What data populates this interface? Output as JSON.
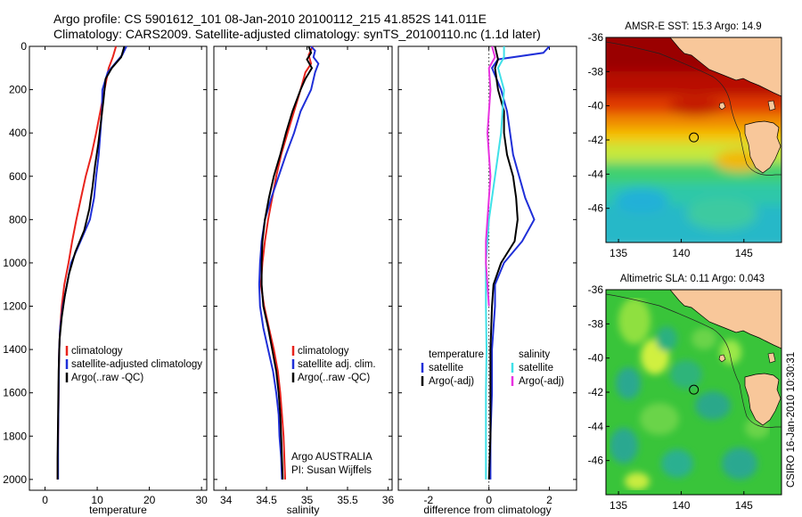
{
  "header": {
    "line1": "Argo profile: CS 5901612_101 08-Jan-2010 20100112_215 41.852S 141.011E",
    "line2": "Climatology: CARS2009. Satellite-adjusted climatology: synTS_20100110.nc (1.1d later)"
  },
  "credit": "Argo AUSTRALIA",
  "pi": "PI: Susan Wijffels",
  "stamp": "CSIRO 16-Jan-2010 10:30:31",
  "colors": {
    "climatology": "#e8231c",
    "satellite": "#1f2fd8",
    "argo": "#000000",
    "sat_diff": "#3fe0e8",
    "argo_diff": "#e832e0",
    "land": "#f8c79a"
  },
  "chart_data": [
    {
      "type": "line",
      "xlabel": "temperature",
      "ylabel": "",
      "xlim": [
        -3,
        31
      ],
      "ylim": [
        2050,
        0
      ],
      "xticks": [
        0,
        10,
        20,
        30
      ],
      "yticks": [
        0,
        200,
        400,
        600,
        800,
        1000,
        1200,
        1400,
        1600,
        1800,
        2000
      ],
      "legend": {
        "position": "lower-right",
        "entries": [
          "climatology",
          "satellite-adjusted climatology",
          "Argo(..raw -QC)"
        ]
      },
      "series": [
        {
          "name": "climatology",
          "color": "#e8231c",
          "points": [
            [
              13.6,
              0
            ],
            [
              13.0,
              50
            ],
            [
              12.2,
              100
            ],
            [
              11.4,
              200
            ],
            [
              10.6,
              300
            ],
            [
              9.8,
              400
            ],
            [
              8.9,
              500
            ],
            [
              7.8,
              600
            ],
            [
              6.9,
              700
            ],
            [
              6.0,
              800
            ],
            [
              5.2,
              900
            ],
            [
              4.5,
              1000
            ],
            [
              3.7,
              1100
            ],
            [
              3.2,
              1200
            ],
            [
              2.9,
              1300
            ],
            [
              2.7,
              1400
            ],
            [
              2.6,
              1600
            ],
            [
              2.5,
              1800
            ],
            [
              2.4,
              2000
            ]
          ]
        },
        {
          "name": "satellite-adjusted climatology",
          "color": "#1f2fd8",
          "points": [
            [
              15.6,
              0
            ],
            [
              14.8,
              40
            ],
            [
              13.4,
              80
            ],
            [
              12.0,
              120
            ],
            [
              11.0,
              200
            ],
            [
              10.9,
              300
            ],
            [
              10.6,
              400
            ],
            [
              10.3,
              500
            ],
            [
              9.8,
              600
            ],
            [
              9.4,
              700
            ],
            [
              8.6,
              800
            ],
            [
              6.8,
              900
            ],
            [
              5.0,
              1000
            ],
            [
              4.2,
              1100
            ],
            [
              3.4,
              1200
            ],
            [
              2.9,
              1300
            ],
            [
              2.7,
              1400
            ],
            [
              2.6,
              1600
            ],
            [
              2.5,
              1800
            ],
            [
              2.5,
              2000
            ]
          ]
        },
        {
          "name": "Argo(..raw -QC)",
          "color": "#000000",
          "points": [
            [
              15.2,
              0
            ],
            [
              14.6,
              50
            ],
            [
              12.8,
              100
            ],
            [
              11.6,
              150
            ],
            [
              11.2,
              250
            ],
            [
              10.7,
              350
            ],
            [
              10.2,
              450
            ],
            [
              9.6,
              550
            ],
            [
              9.1,
              650
            ],
            [
              8.5,
              750
            ],
            [
              7.5,
              850
            ],
            [
              5.8,
              950
            ],
            [
              4.6,
              1050
            ],
            [
              3.8,
              1150
            ],
            [
              3.2,
              1250
            ],
            [
              2.8,
              1350
            ],
            [
              2.6,
              1500
            ],
            [
              2.5,
              1700
            ],
            [
              2.4,
              1900
            ],
            [
              2.4,
              2000
            ]
          ]
        }
      ]
    },
    {
      "type": "line",
      "xlabel": "salinity",
      "ylabel": "",
      "xlim": [
        33.85,
        36.05
      ],
      "ylim": [
        2050,
        0
      ],
      "xticks": [
        34,
        34.5,
        35,
        35.5,
        36
      ],
      "legend": {
        "position": "lower-right",
        "entries": [
          "climatology",
          "satellite adj. clim.",
          "Argo(..raw -QC)"
        ]
      },
      "series": [
        {
          "name": "climatology",
          "color": "#e8231c",
          "points": [
            [
              35.07,
              0
            ],
            [
              35.02,
              40
            ],
            [
              35.05,
              80
            ],
            [
              34.98,
              120
            ],
            [
              34.92,
              200
            ],
            [
              34.84,
              300
            ],
            [
              34.76,
              400
            ],
            [
              34.68,
              500
            ],
            [
              34.62,
              600
            ],
            [
              34.57,
              700
            ],
            [
              34.52,
              800
            ],
            [
              34.48,
              900
            ],
            [
              34.45,
              1000
            ],
            [
              34.43,
              1100
            ],
            [
              34.47,
              1200
            ],
            [
              34.53,
              1300
            ],
            [
              34.59,
              1400
            ],
            [
              34.64,
              1500
            ],
            [
              34.67,
              1600
            ],
            [
              34.69,
              1700
            ],
            [
              34.71,
              1800
            ],
            [
              34.72,
              1900
            ],
            [
              34.73,
              2000
            ]
          ]
        },
        {
          "name": "satellite adj. clim.",
          "color": "#1f2fd8",
          "points": [
            [
              35.05,
              0
            ],
            [
              35.1,
              20
            ],
            [
              35.08,
              50
            ],
            [
              35.14,
              80
            ],
            [
              35.1,
              120
            ],
            [
              35.05,
              200
            ],
            [
              34.92,
              300
            ],
            [
              34.84,
              400
            ],
            [
              34.74,
              500
            ],
            [
              34.65,
              600
            ],
            [
              34.56,
              700
            ],
            [
              34.48,
              800
            ],
            [
              34.44,
              900
            ],
            [
              34.42,
              1000
            ],
            [
              34.41,
              1100
            ],
            [
              34.42,
              1200
            ],
            [
              34.46,
              1300
            ],
            [
              34.52,
              1400
            ],
            [
              34.58,
              1500
            ],
            [
              34.62,
              1600
            ],
            [
              34.65,
              1700
            ],
            [
              34.66,
              1800
            ],
            [
              34.68,
              1900
            ],
            [
              34.69,
              2000
            ]
          ]
        },
        {
          "name": "Argo(..raw -QC)",
          "color": "#000000",
          "points": [
            [
              35.02,
              0
            ],
            [
              35.05,
              30
            ],
            [
              35.0,
              60
            ],
            [
              35.06,
              100
            ],
            [
              34.98,
              150
            ],
            [
              34.92,
              200
            ],
            [
              34.82,
              300
            ],
            [
              34.74,
              400
            ],
            [
              34.67,
              500
            ],
            [
              34.59,
              600
            ],
            [
              34.53,
              700
            ],
            [
              34.48,
              800
            ],
            [
              34.45,
              900
            ],
            [
              34.44,
              1000
            ],
            [
              34.44,
              1100
            ],
            [
              34.46,
              1200
            ],
            [
              34.52,
              1300
            ],
            [
              34.57,
              1400
            ],
            [
              34.62,
              1500
            ],
            [
              34.65,
              1600
            ],
            [
              34.67,
              1700
            ],
            [
              34.68,
              1800
            ],
            [
              34.69,
              1900
            ],
            [
              34.7,
              2000
            ]
          ]
        }
      ]
    },
    {
      "type": "line",
      "xlabel": "difference from climatology",
      "ylabel": "",
      "xlim": [
        -3,
        2.9
      ],
      "ylim": [
        2050,
        0
      ],
      "xticks": [
        -2,
        0,
        2
      ],
      "legend": {
        "position": "lower-right",
        "groups": [
          {
            "heading": "temperature",
            "entries": [
              "satellite",
              "Argo(-adj)"
            ]
          },
          {
            "heading": "salinity",
            "entries": [
              "satellite",
              "Argo(-adj)"
            ]
          }
        ]
      },
      "series": [
        {
          "name": "satellite",
          "group": "temperature",
          "color": "#1f2fd8",
          "points": [
            [
              2.0,
              0
            ],
            [
              1.8,
              30
            ],
            [
              0.3,
              60
            ],
            [
              0.1,
              100
            ],
            [
              0.4,
              200
            ],
            [
              0.6,
              300
            ],
            [
              0.7,
              400
            ],
            [
              0.8,
              500
            ],
            [
              1.0,
              600
            ],
            [
              1.2,
              700
            ],
            [
              1.5,
              800
            ],
            [
              1.1,
              900
            ],
            [
              0.5,
              1000
            ],
            [
              0.2,
              1100
            ],
            [
              0.2,
              1200
            ],
            [
              0.1,
              1400
            ],
            [
              0.1,
              1600
            ],
            [
              0.05,
              1800
            ],
            [
              0.05,
              2000
            ]
          ]
        },
        {
          "name": "Argo(-adj)",
          "group": "temperature",
          "color": "#000000",
          "points": [
            [
              0.2,
              0
            ],
            [
              0.3,
              60
            ],
            [
              0.2,
              100
            ],
            [
              0.3,
              200
            ],
            [
              0.5,
              300
            ],
            [
              0.5,
              400
            ],
            [
              0.6,
              500
            ],
            [
              0.8,
              600
            ],
            [
              0.9,
              700
            ],
            [
              0.95,
              800
            ],
            [
              0.85,
              900
            ],
            [
              0.4,
              1000
            ],
            [
              0.15,
              1100
            ],
            [
              0.1,
              1200
            ],
            [
              0.05,
              1400
            ],
            [
              0.05,
              1600
            ],
            [
              0.05,
              1800
            ],
            [
              0.0,
              2000
            ]
          ]
        },
        {
          "name": "satellite",
          "group": "salinity",
          "color": "#3fe0e8",
          "points": [
            [
              0.5,
              0
            ],
            [
              0.5,
              50
            ],
            [
              0.3,
              100
            ],
            [
              0.5,
              200
            ],
            [
              0.45,
              300
            ],
            [
              0.4,
              400
            ],
            [
              0.3,
              500
            ],
            [
              0.2,
              600
            ],
            [
              0.1,
              700
            ],
            [
              0.0,
              800
            ],
            [
              -0.05,
              900
            ],
            [
              -0.1,
              1000
            ],
            [
              -0.1,
              1100
            ],
            [
              -0.1,
              1200
            ],
            [
              -0.08,
              1400
            ],
            [
              -0.1,
              1600
            ],
            [
              -0.1,
              1800
            ],
            [
              -0.1,
              2000
            ]
          ]
        },
        {
          "name": "Argo(-adj)",
          "group": "salinity",
          "color": "#e832e0",
          "points": [
            [
              0.1,
              0
            ],
            [
              0.2,
              50
            ],
            [
              0.0,
              100
            ],
            [
              0.05,
              200
            ],
            [
              0.0,
              300
            ],
            [
              -0.05,
              400
            ],
            [
              0.0,
              500
            ],
            [
              0.05,
              600
            ],
            [
              0.0,
              700
            ],
            [
              -0.05,
              800
            ],
            [
              -0.1,
              900
            ],
            [
              -0.1,
              1000
            ],
            [
              -0.05,
              1100
            ],
            [
              0.0,
              1200
            ]
          ]
        }
      ]
    },
    {
      "type": "heatmap",
      "title": "AMSR-E SST: 15.3 Argo: 14.9",
      "xlim": [
        134,
        148
      ],
      "ylim": [
        -48,
        -36
      ],
      "xticks": [
        135,
        140,
        145
      ],
      "yticks": [
        -36,
        -38,
        -40,
        -42,
        -44,
        -46
      ],
      "marker": [
        141.011,
        -41.852
      ]
    },
    {
      "type": "heatmap",
      "title": "Altimetric SLA: 0.11 Argo: 0.043",
      "xlim": [
        134,
        148
      ],
      "ylim": [
        -48,
        -36
      ],
      "xticks": [
        135,
        140,
        145
      ],
      "yticks": [
        -36,
        -38,
        -40,
        -42,
        -44,
        -46
      ],
      "marker": [
        141.011,
        -41.852
      ]
    }
  ]
}
